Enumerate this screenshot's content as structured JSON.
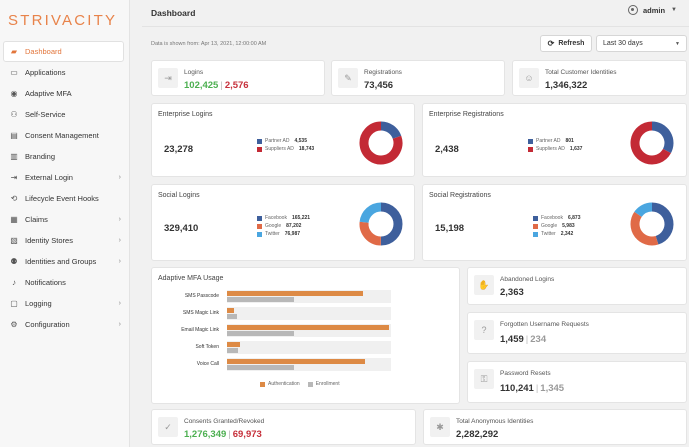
{
  "brand": {
    "logo": "STRIVACITY",
    "accent": "#e2763c"
  },
  "sidebar": {
    "items": [
      {
        "label": "Dashboard",
        "icon": "chart-icon",
        "active": true,
        "chevron": false
      },
      {
        "label": "Applications",
        "icon": "window-icon",
        "active": false,
        "chevron": false
      },
      {
        "label": "Adaptive MFA",
        "icon": "fingerprint-icon",
        "active": false,
        "chevron": false
      },
      {
        "label": "Self-Service",
        "icon": "user-service-icon",
        "active": false,
        "chevron": false
      },
      {
        "label": "Consent Management",
        "icon": "consent-icon",
        "active": false,
        "chevron": false
      },
      {
        "label": "Branding",
        "icon": "branding-icon",
        "active": false,
        "chevron": false
      },
      {
        "label": "External Login",
        "icon": "login-icon",
        "active": false,
        "chevron": true
      },
      {
        "label": "Lifecycle Event Hooks",
        "icon": "hook-icon",
        "active": false,
        "chevron": false
      },
      {
        "label": "Claims",
        "icon": "claims-icon",
        "active": false,
        "chevron": true
      },
      {
        "label": "Identity Stores",
        "icon": "store-icon",
        "active": false,
        "chevron": true
      },
      {
        "label": "Identities and Groups",
        "icon": "group-icon",
        "active": false,
        "chevron": true
      },
      {
        "label": "Notifications",
        "icon": "bell-icon",
        "active": false,
        "chevron": false
      },
      {
        "label": "Logging",
        "icon": "logging-icon",
        "active": false,
        "chevron": true
      },
      {
        "label": "Configuration",
        "icon": "gear-icon",
        "active": false,
        "chevron": true
      }
    ]
  },
  "header": {
    "title": "Dashboard",
    "user": "admin"
  },
  "toolbar": {
    "since": "Data is shown from: Apr 13, 2021, 12:00:00 AM",
    "refresh": "Refresh",
    "range": "Last 30 days"
  },
  "stats": {
    "logins": {
      "label": "Logins",
      "success": "102,425",
      "failed": "2,576"
    },
    "registrations": {
      "label": "Registrations",
      "value": "73,456"
    },
    "customers": {
      "label": "Total Customer Identities",
      "value": "1,346,322"
    },
    "abandoned": {
      "label": "Abandoned Logins",
      "value": "2,363"
    },
    "forgot": {
      "label": "Forgotten Username Requests",
      "value": "1,459",
      "secondary": "234"
    },
    "resets": {
      "label": "Password Resets",
      "value": "110,241",
      "secondary": "1,345"
    },
    "consents": {
      "label": "Consents Granted/Revoked",
      "granted": "1,276,349",
      "revoked": "69,973"
    },
    "anonymous": {
      "label": "Total Anonymous Identities",
      "value": "2,282,292"
    }
  },
  "enterprise_logins": {
    "title": "Enterprise Logins",
    "total": "23,278",
    "legend": [
      {
        "name": "Partner AD",
        "value": "4,535"
      },
      {
        "name": "Suppliers AD",
        "value": "18,743"
      }
    ]
  },
  "enterprise_registrations": {
    "title": "Enterprise Registrations",
    "total": "2,438",
    "legend": [
      {
        "name": "Partner AD",
        "value": "801"
      },
      {
        "name": "Suppliers AD",
        "value": "1,637"
      }
    ]
  },
  "social_logins": {
    "title": "Social Logins",
    "total": "329,410",
    "legend": [
      {
        "name": "Facebook",
        "value": "165,221"
      },
      {
        "name": "Google",
        "value": "87,202"
      },
      {
        "name": "Twitter",
        "value": "76,987"
      }
    ]
  },
  "social_registrations": {
    "title": "Social Registrations",
    "total": "15,198",
    "legend": [
      {
        "name": "Facebook",
        "value": "6,873"
      },
      {
        "name": "Google",
        "value": "5,983"
      },
      {
        "name": "Twitter",
        "value": "2,342"
      }
    ]
  },
  "mfa": {
    "title": "Adaptive MFA Usage",
    "legend_auth": "Authentication",
    "legend_enroll": "Enrollment"
  },
  "colors": {
    "blue": "#3e5f9c",
    "red": "#c32a35",
    "orange": "#e06a47",
    "lightblue": "#4aa6e0",
    "bar_orange": "#dd8a45",
    "bar_grey": "#b8b8b8"
  },
  "chart_data": [
    {
      "type": "pie",
      "title": "Enterprise Logins",
      "categories": [
        "Partner AD",
        "Suppliers AD"
      ],
      "values": [
        4535,
        18743
      ],
      "colors": [
        "#3e5f9c",
        "#c32a35"
      ]
    },
    {
      "type": "pie",
      "title": "Enterprise Registrations",
      "categories": [
        "Partner AD",
        "Suppliers AD"
      ],
      "values": [
        801,
        1637
      ],
      "colors": [
        "#3e5f9c",
        "#c32a35"
      ]
    },
    {
      "type": "pie",
      "title": "Social Logins",
      "categories": [
        "Facebook",
        "Google",
        "Twitter"
      ],
      "values": [
        165221,
        87202,
        76987
      ],
      "colors": [
        "#3e5f9c",
        "#e06a47",
        "#4aa6e0"
      ]
    },
    {
      "type": "pie",
      "title": "Social Registrations",
      "categories": [
        "Facebook",
        "Google",
        "Twitter"
      ],
      "values": [
        6873,
        5983,
        2342
      ],
      "colors": [
        "#3e5f9c",
        "#e06a47",
        "#4aa6e0"
      ]
    },
    {
      "type": "bar",
      "orientation": "horizontal",
      "title": "Adaptive MFA Usage",
      "categories": [
        "SMS Passcode",
        "SMS Magic Link",
        "Email Magic Link",
        "Soft Token",
        "Voice Call"
      ],
      "series": [
        {
          "name": "Authentication",
          "values": [
            0.83,
            0.04,
            0.99,
            0.08,
            0.84
          ]
        },
        {
          "name": "Enrollment",
          "values": [
            0.41,
            0.06,
            0.41,
            0.07,
            0.41
          ]
        }
      ],
      "value_scale": "relative (0-1)"
    }
  ]
}
